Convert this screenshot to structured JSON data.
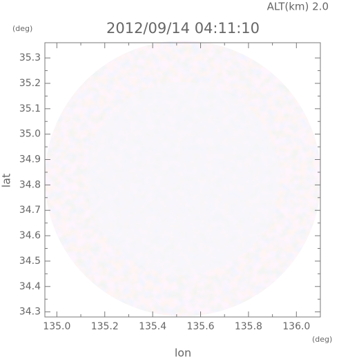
{
  "chart_data": {
    "type": "image",
    "title": "2012/09/14 04:11:10",
    "subtitle": "ALT(km) 2.0",
    "xlabel": "lon",
    "ylabel": "lat",
    "xunit": "(deg)",
    "yunit": "(deg)",
    "xlim": [
      134.95,
      136.1
    ],
    "ylim": [
      34.28,
      35.36
    ],
    "xticks": [
      {
        "value": 135.0,
        "label": "135.0"
      },
      135.2,
      135.4,
      135.6,
      135.8,
      {
        "value": 136.0,
        "label": "136.0"
      }
    ],
    "yticks": [
      34.3,
      34.4,
      34.5,
      34.6,
      34.7,
      34.8,
      34.9,
      {
        "value": 35.0,
        "label": "35.0"
      },
      35.1,
      35.2,
      35.3
    ]
  }
}
